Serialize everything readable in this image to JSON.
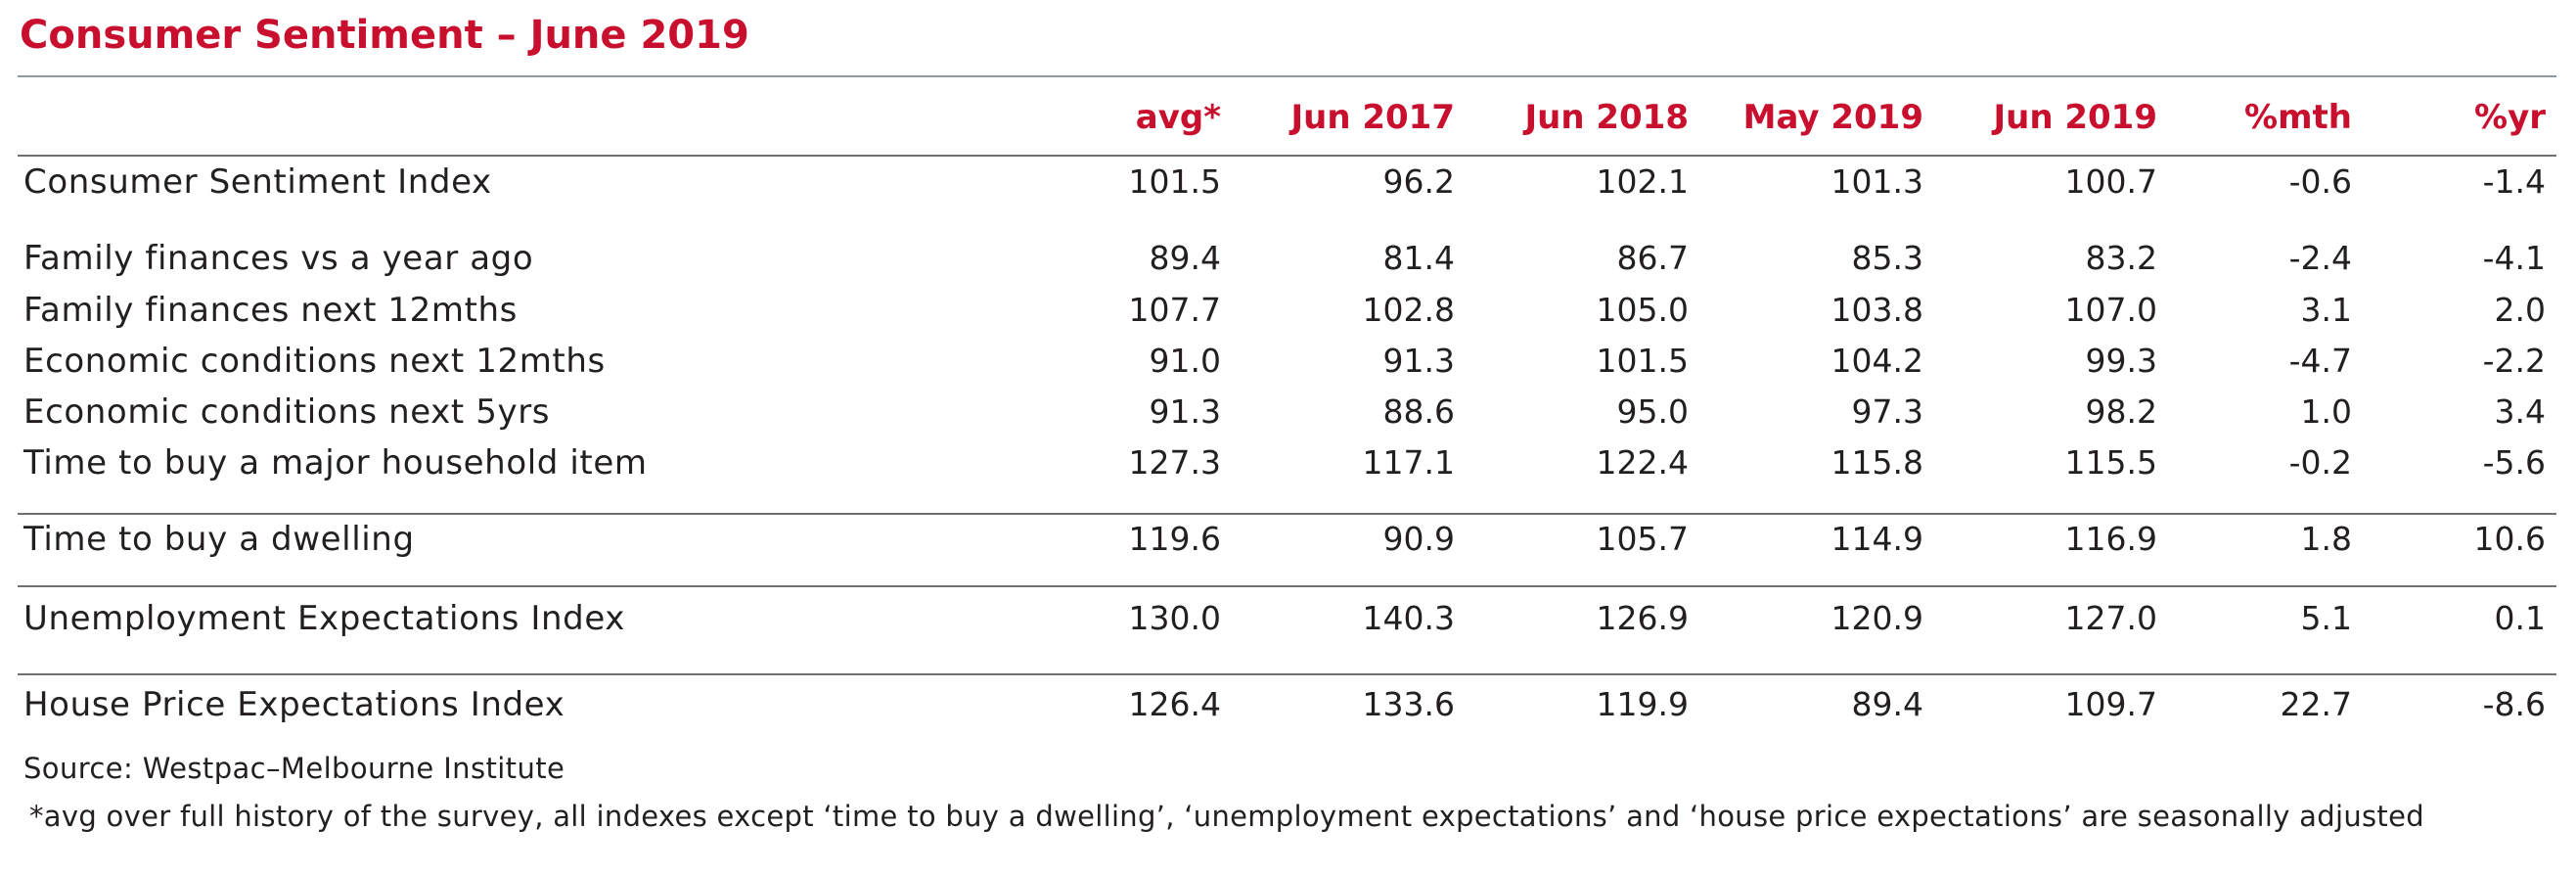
{
  "title": "Consumer Sentiment – June 2019",
  "table": {
    "headers": [
      "avg*",
      "Jun 2017",
      "Jun 2018",
      "May 2019",
      "Jun 2019",
      "%mth",
      "%yr"
    ],
    "rows": [
      {
        "label": "Consumer Sentiment Index",
        "values": [
          "101.5",
          "96.2",
          "102.1",
          "101.3",
          "100.7",
          "-0.6",
          "-1.4"
        ]
      },
      {
        "label": "Family finances vs a year ago",
        "values": [
          "89.4",
          "81.4",
          "86.7",
          "85.3",
          "83.2",
          "-2.4",
          "-4.1"
        ]
      },
      {
        "label": "Family finances next 12mths",
        "values": [
          "107.7",
          "102.8",
          "105.0",
          "103.8",
          "107.0",
          "3.1",
          "2.0"
        ]
      },
      {
        "label": "Economic conditions next 12mths",
        "values": [
          "91.0",
          "91.3",
          "101.5",
          "104.2",
          "99.3",
          "-4.7",
          "-2.2"
        ]
      },
      {
        "label": "Economic conditions next 5yrs",
        "values": [
          "91.3",
          "88.6",
          "95.0",
          "97.3",
          "98.2",
          "1.0",
          "3.4"
        ]
      },
      {
        "label": "Time to buy a major household item",
        "values": [
          "127.3",
          "117.1",
          "122.4",
          "115.8",
          "115.5",
          "-0.2",
          "-5.6"
        ]
      },
      {
        "label": "Time to buy a dwelling",
        "values": [
          "119.6",
          "90.9",
          "105.7",
          "114.9",
          "116.9",
          "1.8",
          "10.6"
        ]
      },
      {
        "label": "Unemployment Expectations Index",
        "values": [
          "130.0",
          "140.3",
          "126.9",
          "120.9",
          "127.0",
          "5.1",
          "0.1"
        ]
      },
      {
        "label": "House Price Expectations Index",
        "values": [
          "126.4",
          "133.6",
          "119.9",
          "89.4",
          "109.7",
          "22.7",
          "-8.6"
        ]
      }
    ]
  },
  "source": "Source: Westpac–Melbourne Institute",
  "footnote": "*avg over full history of the survey, all indexes except ‘time to buy a dwelling’, ‘unemployment expectations’ and ‘house price expectations’ are seasonally adjusted",
  "colors": {
    "accent": "#c8102e",
    "text": "#231f20",
    "rule": "#6f6f6f"
  }
}
